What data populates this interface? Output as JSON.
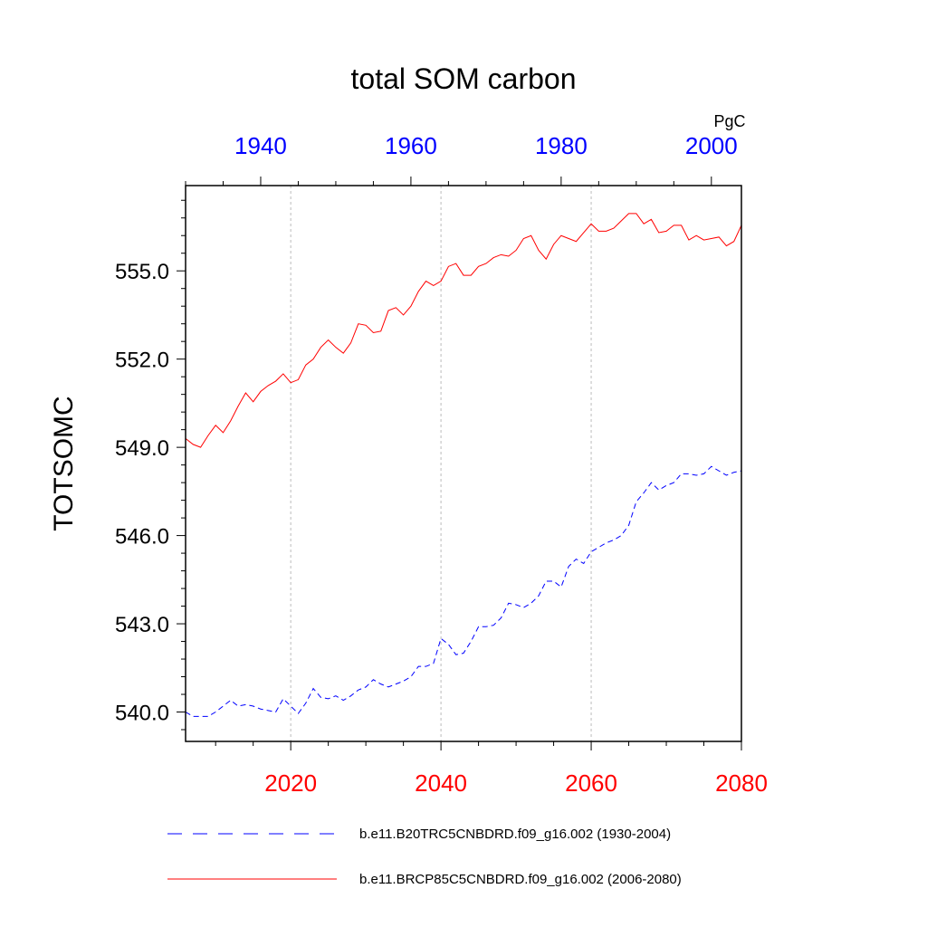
{
  "chart_data": {
    "type": "line",
    "title": "total SOM carbon",
    "units": "PgC",
    "ylabel": "TOTSOMC",
    "ylim": [
      539,
      557.9
    ],
    "yticks": [
      "540.0",
      "543.0",
      "546.0",
      "549.0",
      "552.0",
      "555.0"
    ],
    "yticks_values": [
      540,
      543,
      546,
      549,
      552,
      555
    ],
    "x_bottom": {
      "range": [
        2006,
        2080
      ],
      "ticks": [
        2020,
        2040,
        2060,
        2080
      ],
      "tick_labels": [
        "2020",
        "2040",
        "2060",
        "2080"
      ],
      "color": "#ff0000"
    },
    "x_top": {
      "range": [
        1930,
        2004
      ],
      "ticks": [
        1940,
        1960,
        1980,
        2000
      ],
      "tick_labels": [
        "1940",
        "1960",
        "1980",
        "2000"
      ],
      "color": "#0000ff"
    },
    "grid_x": true,
    "series": [
      {
        "name": "b.e11.B20TRC5CNBDRD.f09_g16.002 (1930-2004)",
        "color": "#0000ff",
        "dash": "dashed",
        "axis": "top",
        "x": [
          1930,
          1931,
          1932,
          1933,
          1934,
          1935,
          1936,
          1937,
          1938,
          1939,
          1940,
          1941,
          1942,
          1943,
          1944,
          1945,
          1946,
          1947,
          1948,
          1949,
          1950,
          1951,
          1952,
          1953,
          1954,
          1955,
          1956,
          1957,
          1958,
          1959,
          1960,
          1961,
          1962,
          1963,
          1964,
          1965,
          1966,
          1967,
          1968,
          1969,
          1970,
          1971,
          1972,
          1973,
          1974,
          1975,
          1976,
          1977,
          1978,
          1979,
          1980,
          1981,
          1982,
          1983,
          1984,
          1985,
          1986,
          1987,
          1988,
          1989,
          1990,
          1991,
          1992,
          1993,
          1994,
          1995,
          1996,
          1997,
          1998,
          1999,
          2000,
          2001,
          2002,
          2003,
          2004
        ],
        "values": [
          540.0,
          539.85,
          539.85,
          539.85,
          540.0,
          540.2,
          540.4,
          540.2,
          540.25,
          540.2,
          540.1,
          540.05,
          540.0,
          540.45,
          540.2,
          539.95,
          540.3,
          540.8,
          540.5,
          540.45,
          540.55,
          540.4,
          540.55,
          540.75,
          540.85,
          541.1,
          540.95,
          540.85,
          540.95,
          541.05,
          541.2,
          541.55,
          541.55,
          541.65,
          542.5,
          542.3,
          541.95,
          542.0,
          542.4,
          542.9,
          542.9,
          542.95,
          543.2,
          543.7,
          543.65,
          543.55,
          543.7,
          543.95,
          544.45,
          544.45,
          544.25,
          544.95,
          545.2,
          545.05,
          545.45,
          545.6,
          545.75,
          545.85,
          546.0,
          546.35,
          547.15,
          547.45,
          547.8,
          547.55,
          547.7,
          547.8,
          548.1,
          548.1,
          548.05,
          548.1,
          548.35,
          548.2,
          548.05,
          548.15,
          548.2
        ]
      },
      {
        "name": "b.e11.BRCP85C5CNBDRD.f09_g16.002 (2006-2080)",
        "color": "#ff0000",
        "dash": "solid",
        "axis": "bottom",
        "x": [
          2006,
          2007,
          2008,
          2009,
          2010,
          2011,
          2012,
          2013,
          2014,
          2015,
          2016,
          2017,
          2018,
          2019,
          2020,
          2021,
          2022,
          2023,
          2024,
          2025,
          2026,
          2027,
          2028,
          2029,
          2030,
          2031,
          2032,
          2033,
          2034,
          2035,
          2036,
          2037,
          2038,
          2039,
          2040,
          2041,
          2042,
          2043,
          2044,
          2045,
          2046,
          2047,
          2048,
          2049,
          2050,
          2051,
          2052,
          2053,
          2054,
          2055,
          2056,
          2057,
          2058,
          2059,
          2060,
          2061,
          2062,
          2063,
          2064,
          2065,
          2066,
          2067,
          2068,
          2069,
          2070,
          2071,
          2072,
          2073,
          2074,
          2075,
          2076,
          2077,
          2078,
          2079,
          2080
        ],
        "values": [
          549.3,
          549.1,
          549.0,
          549.4,
          549.75,
          549.5,
          549.9,
          550.4,
          550.85,
          550.55,
          550.9,
          551.1,
          551.25,
          551.5,
          551.2,
          551.3,
          551.8,
          552.0,
          552.4,
          552.65,
          552.4,
          552.2,
          552.55,
          553.2,
          553.15,
          552.9,
          552.95,
          553.65,
          553.75,
          553.5,
          553.8,
          554.3,
          554.65,
          554.5,
          554.65,
          555.15,
          555.25,
          554.85,
          554.85,
          555.15,
          555.25,
          555.45,
          555.55,
          555.5,
          555.7,
          556.1,
          556.2,
          555.7,
          555.4,
          555.9,
          556.2,
          556.1,
          556.0,
          556.3,
          556.6,
          556.35,
          556.35,
          556.45,
          556.7,
          556.95,
          556.95,
          556.6,
          556.75,
          556.3,
          556.35,
          556.55,
          556.55,
          556.05,
          556.2,
          556.05,
          556.1,
          556.15,
          555.85,
          556.0,
          556.55
        ]
      }
    ]
  }
}
